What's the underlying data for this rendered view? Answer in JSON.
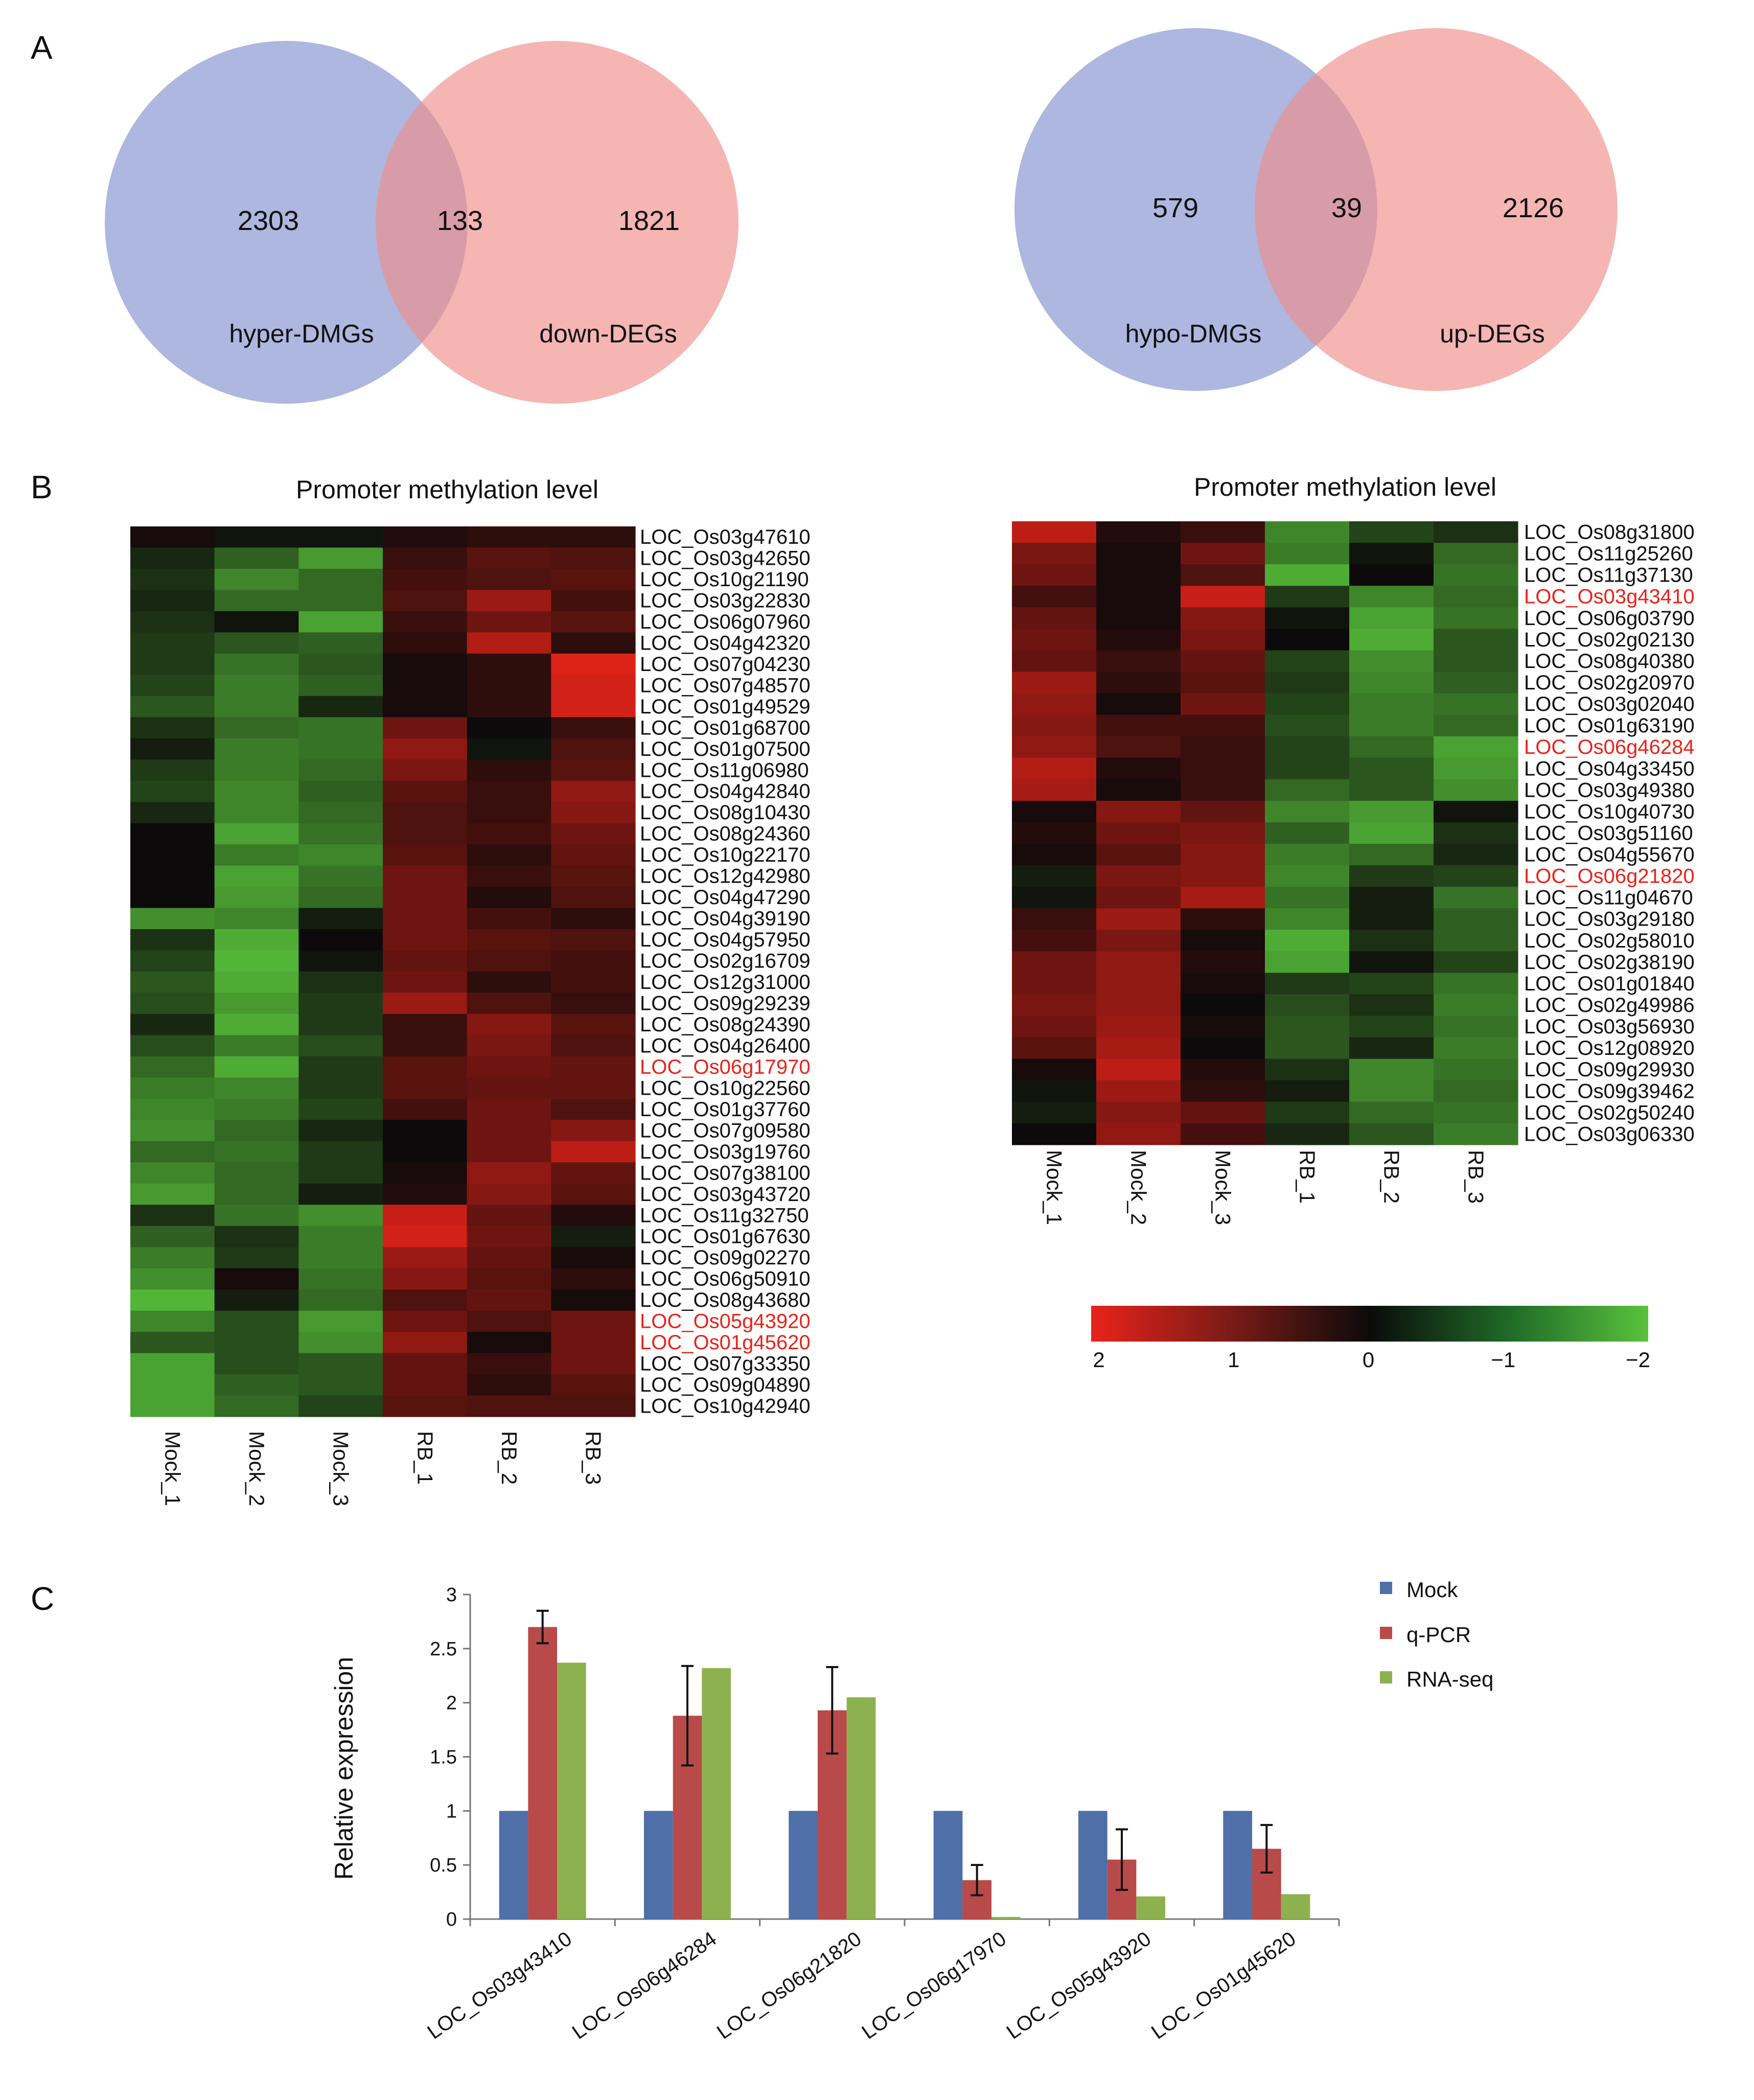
{
  "panels": {
    "a": "A",
    "b": "B",
    "c": "C"
  },
  "colors": {
    "venn_blue": "#8e9bd3",
    "venn_red": "#ef8f8c",
    "highlight": "#e8231b",
    "mock": "#4f6fa8",
    "qpcr": "#b94a4a",
    "rnaseq": "#8eb14f"
  },
  "venn": [
    {
      "left_label": "hyper-DMGs",
      "right_label": "down-DEGs",
      "left_only": "2303",
      "overlap": "133",
      "right_only": "1821"
    },
    {
      "left_label": "hypo-DMGs",
      "right_label": "up-DEGs",
      "left_only": "579",
      "overlap": "39",
      "right_only": "2126"
    }
  ],
  "chart_data": [
    {
      "type": "heatmap",
      "title": "Promoter methylation level",
      "columns": [
        "Mock_1",
        "Mock_2",
        "Mock_3",
        "RB_1",
        "RB_2",
        "RB_3"
      ],
      "rows": [
        "LOC_Os03g47610",
        "LOC_Os03g42650",
        "LOC_Os10g21190",
        "LOC_Os03g22830",
        "LOC_Os06g07960",
        "LOC_Os04g42320",
        "LOC_Os07g04230",
        "LOC_Os07g48570",
        "LOC_Os01g49529",
        "LOC_Os01g68700",
        "LOC_Os01g07500",
        "LOC_Os11g06980",
        "LOC_Os04g42840",
        "LOC_Os08g10430",
        "LOC_Os08g24360",
        "LOC_Os10g22170",
        "LOC_Os12g42980",
        "LOC_Os04g47290",
        "LOC_Os04g39190",
        "LOC_Os04g57950",
        "LOC_Os02g16709",
        "LOC_Os12g31000",
        "LOC_Os09g29239",
        "LOC_Os08g24390",
        "LOC_Os04g26400",
        "LOC_Os06g17970",
        "LOC_Os10g22560",
        "LOC_Os01g37760",
        "LOC_Os07g09580",
        "LOC_Os03g19760",
        "LOC_Os07g38100",
        "LOC_Os03g43720",
        "LOC_Os11g32750",
        "LOC_Os01g67630",
        "LOC_Os09g02270",
        "LOC_Os06g50910",
        "LOC_Os08g43680",
        "LOC_Os05g43920",
        "LOC_Os01g45620",
        "LOC_Os07g33350",
        "LOC_Os09g04890",
        "LOC_Os10g42940"
      ],
      "highlighted_rows": [
        "LOC_Os06g17970",
        "LOC_Os05g43920",
        "LOC_Os01g45620"
      ],
      "values": [
        [
          0.1,
          -0.1,
          -0.1,
          0.2,
          0.3,
          0.3
        ],
        [
          -0.3,
          -0.9,
          -1.5,
          0.4,
          0.7,
          0.6
        ],
        [
          -0.4,
          -1.3,
          -1.0,
          0.5,
          0.6,
          0.7
        ],
        [
          -0.3,
          -1.0,
          -1.0,
          0.6,
          1.3,
          0.5
        ],
        [
          -0.4,
          -0.1,
          -1.6,
          0.4,
          0.9,
          0.7
        ],
        [
          -0.5,
          -0.8,
          -0.9,
          0.3,
          1.5,
          0.3
        ],
        [
          -0.5,
          -1.1,
          -0.8,
          0.1,
          0.3,
          1.9
        ],
        [
          -0.6,
          -1.2,
          -0.9,
          0.1,
          0.3,
          1.8
        ],
        [
          -0.8,
          -1.2,
          -0.3,
          0.1,
          0.3,
          1.8
        ],
        [
          -0.4,
          -1.0,
          -1.1,
          0.9,
          0.0,
          0.4
        ],
        [
          -0.2,
          -1.2,
          -1.1,
          1.2,
          -0.1,
          0.6
        ],
        [
          -0.5,
          -1.2,
          -1.0,
          1.0,
          0.3,
          0.7
        ],
        [
          -0.6,
          -1.3,
          -0.9,
          0.7,
          0.4,
          1.2
        ],
        [
          -0.3,
          -1.3,
          -1.0,
          0.6,
          0.4,
          1.1
        ],
        [
          0.0,
          -1.6,
          -1.1,
          0.6,
          0.5,
          0.9
        ],
        [
          0.0,
          -1.2,
          -1.3,
          0.7,
          0.3,
          0.8
        ],
        [
          0.0,
          -1.6,
          -1.1,
          0.9,
          0.4,
          0.7
        ],
        [
          0.0,
          -1.5,
          -1.0,
          0.9,
          0.2,
          0.6
        ],
        [
          -1.4,
          -1.3,
          -0.2,
          0.9,
          0.5,
          0.3
        ],
        [
          -0.4,
          -1.7,
          0.0,
          0.9,
          0.7,
          0.6
        ],
        [
          -0.6,
          -1.8,
          -0.1,
          0.8,
          0.6,
          0.5
        ],
        [
          -0.8,
          -1.7,
          -0.4,
          0.9,
          0.3,
          0.5
        ],
        [
          -0.7,
          -1.5,
          -0.5,
          1.3,
          0.6,
          0.4
        ],
        [
          -0.3,
          -1.7,
          -0.5,
          0.4,
          1.1,
          0.7
        ],
        [
          -0.7,
          -1.2,
          -0.7,
          0.4,
          1.0,
          0.6
        ],
        [
          -1.0,
          -1.7,
          -0.5,
          0.7,
          0.9,
          0.8
        ],
        [
          -1.2,
          -1.3,
          -0.5,
          0.7,
          0.8,
          0.8
        ],
        [
          -1.3,
          -1.2,
          -0.6,
          0.5,
          0.9,
          0.6
        ],
        [
          -1.4,
          -1.0,
          -0.3,
          0.0,
          0.9,
          1.1
        ],
        [
          -1.0,
          -1.1,
          -0.5,
          0.0,
          0.9,
          1.6
        ],
        [
          -1.3,
          -1.0,
          -0.5,
          0.1,
          1.2,
          0.8
        ],
        [
          -1.5,
          -1.0,
          -0.2,
          0.2,
          1.1,
          0.7
        ],
        [
          -0.4,
          -1.1,
          -1.4,
          1.7,
          0.8,
          0.2
        ],
        [
          -0.9,
          -0.4,
          -1.2,
          1.8,
          0.9,
          -0.2
        ],
        [
          -1.2,
          -0.5,
          -1.2,
          1.3,
          0.8,
          0.1
        ],
        [
          -1.4,
          0.1,
          -1.1,
          1.1,
          0.7,
          0.3
        ],
        [
          -1.8,
          -0.2,
          -1.0,
          0.6,
          0.8,
          0.1
        ],
        [
          -1.3,
          -0.7,
          -1.5,
          0.9,
          0.6,
          0.9
        ],
        [
          -0.8,
          -0.7,
          -1.4,
          1.2,
          0.1,
          0.9
        ],
        [
          -1.6,
          -0.7,
          -0.8,
          0.8,
          0.4,
          0.9
        ],
        [
          -1.6,
          -0.9,
          -0.8,
          0.8,
          0.3,
          0.7
        ],
        [
          -1.6,
          -1.0,
          -0.6,
          0.7,
          0.6,
          0.6
        ]
      ]
    },
    {
      "type": "heatmap",
      "title": "Promoter methylation level",
      "columns": [
        "Mock_1",
        "Mock_2",
        "Mock_3",
        "RB_1",
        "RB_2",
        "RB_3"
      ],
      "rows": [
        "LOC_Os08g31800",
        "LOC_Os11g25260",
        "LOC_Os11g37130",
        "LOC_Os03g43410",
        "LOC_Os06g03790",
        "LOC_Os02g02130",
        "LOC_Os08g40380",
        "LOC_Os02g20970",
        "LOC_Os03g02040",
        "LOC_Os01g63190",
        "LOC_Os06g46284",
        "LOC_Os04g33450",
        "LOC_Os03g49380",
        "LOC_Os10g40730",
        "LOC_Os03g51160",
        "LOC_Os04g55670",
        "LOC_Os06g21820",
        "LOC_Os11g04670",
        "LOC_Os03g29180",
        "LOC_Os02g58010",
        "LOC_Os02g38190",
        "LOC_Os01g01840",
        "LOC_Os02g49986",
        "LOC_Os03g56930",
        "LOC_Os12g08920",
        "LOC_Os09g29930",
        "LOC_Os09g39462",
        "LOC_Os02g50240",
        "LOC_Os03g06330"
      ],
      "highlighted_rows": [
        "LOC_Os03g43410",
        "LOC_Os06g46284",
        "LOC_Os06g21820"
      ],
      "values": [
        [
          1.6,
          0.2,
          0.4,
          -1.3,
          -0.6,
          -0.4
        ],
        [
          1.0,
          0.1,
          0.9,
          -1.2,
          -0.1,
          -1.0
        ],
        [
          0.9,
          0.1,
          0.6,
          -1.7,
          0.0,
          -1.1
        ],
        [
          0.5,
          0.1,
          1.7,
          -0.5,
          -1.3,
          -1.0
        ],
        [
          0.8,
          0.1,
          1.1,
          -0.1,
          -1.6,
          -1.1
        ],
        [
          0.9,
          0.2,
          1.0,
          0.0,
          -1.7,
          -0.8
        ],
        [
          0.8,
          0.4,
          0.8,
          -0.6,
          -1.4,
          -0.8
        ],
        [
          1.3,
          0.3,
          0.7,
          -0.5,
          -1.3,
          -0.9
        ],
        [
          1.2,
          0.1,
          0.9,
          -0.6,
          -1.2,
          -1.1
        ],
        [
          1.1,
          0.5,
          0.5,
          -0.7,
          -1.2,
          -1.0
        ],
        [
          1.2,
          0.6,
          0.4,
          -0.6,
          -1.0,
          -1.6
        ],
        [
          1.5,
          0.2,
          0.4,
          -0.6,
          -0.8,
          -1.5
        ],
        [
          1.4,
          0.1,
          0.4,
          -1.0,
          -0.8,
          -1.4
        ],
        [
          0.1,
          1.1,
          0.8,
          -1.3,
          -1.5,
          -0.1
        ],
        [
          0.2,
          0.9,
          1.0,
          -0.9,
          -1.6,
          -0.4
        ],
        [
          0.1,
          0.7,
          1.1,
          -1.2,
          -1.0,
          -0.3
        ],
        [
          -0.2,
          1.0,
          1.1,
          -1.3,
          -0.5,
          -0.6
        ],
        [
          -0.1,
          0.9,
          1.4,
          -1.1,
          -0.2,
          -1.1
        ],
        [
          0.4,
          1.3,
          0.3,
          -1.3,
          -0.2,
          -0.9
        ],
        [
          0.5,
          1.0,
          0.1,
          -1.7,
          -0.4,
          -0.9
        ],
        [
          0.9,
          1.2,
          0.2,
          -1.6,
          -0.1,
          -0.6
        ],
        [
          0.9,
          1.2,
          0.1,
          -0.5,
          -0.6,
          -1.1
        ],
        [
          1.0,
          1.2,
          0.0,
          -0.7,
          -0.4,
          -1.2
        ],
        [
          0.9,
          1.3,
          0.1,
          -0.8,
          -0.6,
          -1.1
        ],
        [
          0.7,
          1.4,
          0.0,
          -0.8,
          -0.3,
          -1.2
        ],
        [
          0.1,
          1.6,
          0.2,
          -0.4,
          -1.3,
          -1.1
        ],
        [
          -0.1,
          1.3,
          0.3,
          -0.2,
          -1.3,
          -1.0
        ],
        [
          -0.2,
          1.1,
          0.8,
          -0.5,
          -1.0,
          -1.1
        ],
        [
          0.0,
          1.2,
          0.5,
          -0.3,
          -0.8,
          -1.2
        ]
      ]
    },
    {
      "type": "legend-colorbar",
      "ticks": [
        "2",
        "1",
        "0",
        "−1",
        "−2"
      ],
      "range": [
        2,
        -2
      ]
    },
    {
      "type": "bar",
      "ylabel": "Relative expression",
      "ylim": [
        0,
        3
      ],
      "yticks": [
        "0",
        "0.5",
        "1",
        "1.5",
        "2",
        "2.5",
        "3"
      ],
      "categories": [
        "LOC_Os03g43410",
        "LOC_Os06g46284",
        "LOC_Os06g21820",
        "LOC_Os06g17970",
        "LOC_Os05g43920",
        "LOC_Os01g45620"
      ],
      "series": [
        {
          "name": "Mock",
          "values": [
            1,
            1,
            1,
            1,
            1,
            1
          ],
          "errors": [
            0,
            0,
            0,
            0,
            0,
            0
          ]
        },
        {
          "name": "q-PCR",
          "values": [
            2.7,
            1.88,
            1.93,
            0.36,
            0.55,
            0.65
          ],
          "errors": [
            0.15,
            0.46,
            0.4,
            0.14,
            0.28,
            0.22
          ]
        },
        {
          "name": "RNA-seq",
          "values": [
            2.37,
            2.32,
            2.05,
            0.02,
            0.21,
            0.23
          ],
          "errors": [
            0,
            0,
            0,
            0,
            0,
            0
          ]
        }
      ]
    }
  ]
}
